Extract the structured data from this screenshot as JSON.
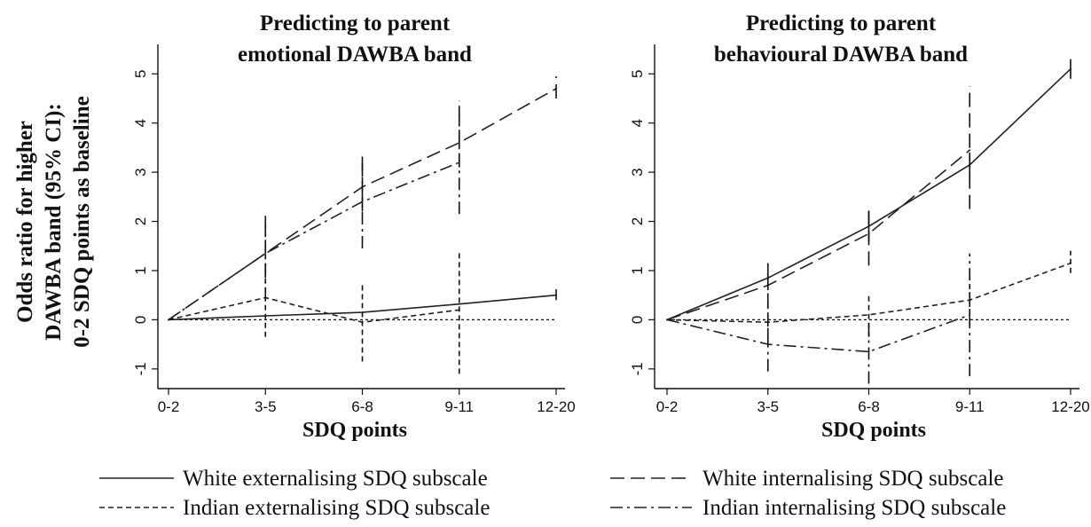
{
  "ylabel_lines": [
    "Odds ratio for higher",
    "DAWBA band (95% CI):",
    "0-2 SDQ points  as baseline"
  ],
  "legend": [
    {
      "label": "White  externalising  SDQ subscale",
      "dash": "solid"
    },
    {
      "label": "White  internalising  SDQ subscale",
      "dash": "longdash"
    },
    {
      "label": "Indian  externalising  SDQ subscale",
      "dash": "shortdash"
    },
    {
      "label": "Indian  internalising  SDQ subscale",
      "dash": "dashdot"
    }
  ],
  "chart_data": [
    {
      "type": "line",
      "title": [
        "Predicting to parent",
        "emotional  DAWBA band"
      ],
      "xlabel": "SDQ points",
      "categories": [
        "0-2",
        "3-5",
        "6-8",
        "9-11",
        "12-20"
      ],
      "ylim": [
        -1.4,
        5.6
      ],
      "yticks": [
        -1,
        0,
        1,
        2,
        3,
        4,
        5
      ],
      "reference_line": 0,
      "series": [
        {
          "name": "White  externalising  SDQ subscale",
          "dash": "solid",
          "values": [
            0,
            0.08,
            0.15,
            0.32,
            0.5
          ],
          "ci": [
            null,
            null,
            null,
            null,
            [
              0.4,
              0.62
            ]
          ]
        },
        {
          "name": "White  internalising  SDQ subscale",
          "dash": "longdash",
          "values": [
            0,
            1.35,
            2.7,
            3.6,
            4.7
          ],
          "ci": [
            null,
            [
              0.85,
              1.95
            ],
            [
              2.2,
              3.35
            ],
            [
              3.1,
              4.2
            ],
            [
              4.5,
              4.95
            ]
          ]
        },
        {
          "name": "Indian  externalising  SDQ subscale",
          "dash": "shortdash",
          "values": [
            0,
            0.45,
            -0.05,
            0.2,
            null
          ],
          "ci": [
            null,
            [
              -0.35,
              1.15
            ],
            [
              -0.85,
              0.75
            ],
            [
              -1.1,
              1.4
            ],
            null
          ]
        },
        {
          "name": "Indian  internalising  SDQ subscale",
          "dash": "dashdot",
          "values": [
            0,
            1.35,
            2.4,
            3.2,
            null
          ],
          "ci": [
            null,
            [
              0.4,
              2.15
            ],
            [
              1.45,
              3.2
            ],
            [
              2.15,
              4.45
            ],
            null
          ]
        }
      ]
    },
    {
      "type": "line",
      "title": [
        "Predicting to parent",
        "behavioural  DAWBA band"
      ],
      "xlabel": "SDQ points",
      "categories": [
        "0-2",
        "3-5",
        "6-8",
        "9-11",
        "12-20"
      ],
      "ylim": [
        -1.4,
        5.6
      ],
      "yticks": [
        -1,
        0,
        1,
        2,
        3,
        4,
        5
      ],
      "reference_line": 0,
      "series": [
        {
          "name": "White  externalising  SDQ subscale",
          "dash": "solid",
          "values": [
            0,
            0.85,
            1.9,
            3.15,
            5.1
          ],
          "ci": [
            null,
            [
              0.6,
              1.1
            ],
            [
              1.6,
              2.2
            ],
            [
              2.9,
              3.4
            ],
            [
              4.9,
              5.3
            ]
          ]
        },
        {
          "name": "White  internalising  SDQ subscale",
          "dash": "longdash",
          "values": [
            0,
            0.7,
            1.75,
            3.45,
            null
          ],
          "ci": [
            null,
            [
              0.25,
              1.15
            ],
            [
              1.1,
              2.3
            ],
            [
              2.25,
              4.75
            ],
            null
          ]
        },
        {
          "name": "Indian  externalising  SDQ subscale",
          "dash": "shortdash",
          "values": [
            0,
            -0.05,
            0.1,
            0.4,
            1.15
          ],
          "ci": [
            null,
            [
              -0.5,
              0.4
            ],
            [
              -0.35,
              0.55
            ],
            [
              -0.1,
              0.9
            ],
            [
              0.95,
              1.4
            ]
          ]
        },
        {
          "name": "Indian  internalising  SDQ subscale",
          "dash": "dashdot",
          "values": [
            0,
            -0.5,
            -0.65,
            0.1,
            null
          ],
          "ci": [
            null,
            [
              -1.05,
              0.1
            ],
            [
              -1.3,
              -0.05
            ],
            [
              -1.15,
              1.35
            ],
            null
          ]
        }
      ]
    }
  ]
}
